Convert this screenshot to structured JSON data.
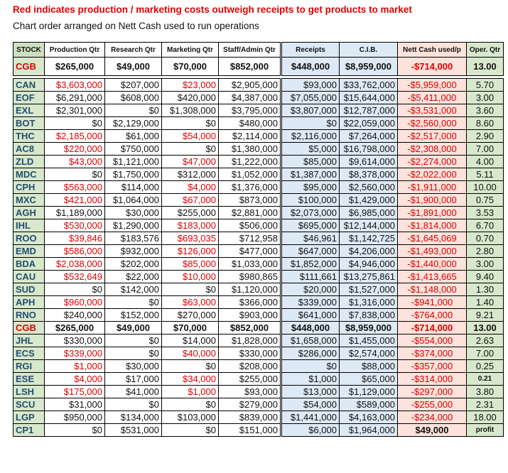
{
  "title": "Red indicates production / marketing costs outweigh receipts to get products to market",
  "subtitle": "Chart order arranged on Nett Cash used to run operations",
  "headers": [
    "STOCK",
    "Production Qtr",
    "Research Qtr",
    "Marketing Qtr",
    "Staff/Admin Qtr",
    "Receipts",
    "C.I.B.",
    "Nett Cash used/p",
    "Oper. Qtr"
  ],
  "colors": {
    "red": "#e00000",
    "stock_green": "#d8e8cc",
    "receipts_blue": "#dde9f5",
    "cash_pink": "#fde3dc"
  },
  "top_row": {
    "stock": "CGB",
    "production": "$265,000",
    "research": "$49,000",
    "marketing": "$70,000",
    "staff": "$852,000",
    "receipts": "$448,000",
    "cib": "$8,959,000",
    "nett": "-$714,000",
    "oper": "13.00"
  },
  "rows": [
    {
      "stock": "CAN",
      "production": "$3,603,000",
      "research": "$207,000",
      "marketing": "$23,000",
      "staff": "$2,905,000",
      "receipts": "$93,000",
      "cib": "$33,762,000",
      "nett": "-$5,959,000",
      "oper": "5.70",
      "red_prod": true,
      "red_mkt": true
    },
    {
      "stock": "EOF",
      "production": "$6,291,000",
      "research": "$608,000",
      "marketing": "$420,000",
      "staff": "$4,387,000",
      "receipts": "$7,055,000",
      "cib": "$15,644,000",
      "nett": "-$5,411,000",
      "oper": "3.00"
    },
    {
      "stock": "EXL",
      "production": "$2,301,000",
      "research": "$0",
      "marketing": "$1,308,000",
      "staff": "$3,795,000",
      "receipts": "$3,807,000",
      "cib": "$12,787,000",
      "nett": "-$3,531,000",
      "oper": "3.60"
    },
    {
      "stock": "BOT",
      "production": "$0",
      "research": "$2,129,000",
      "marketing": "$0",
      "staff": "$480,000",
      "receipts": "$0",
      "cib": "$22,059,000",
      "nett": "-$2,560,000",
      "oper": "8.60"
    },
    {
      "stock": "THC",
      "production": "$2,185,000",
      "research": "$61,000",
      "marketing": "$54,000",
      "staff": "$2,114,000",
      "receipts": "$2,116,000",
      "cib": "$7,264,000",
      "nett": "-$2,517,000",
      "oper": "2.90",
      "red_prod": true,
      "red_mkt": true
    },
    {
      "stock": "AC8",
      "production": "$220,000",
      "research": "$750,000",
      "marketing": "$0",
      "staff": "$1,380,000",
      "receipts": "$5,000",
      "cib": "$16,798,000",
      "nett": "-$2,308,000",
      "oper": "7.00",
      "red_prod": true
    },
    {
      "stock": "ZLD",
      "production": "$43,000",
      "research": "$1,121,000",
      "marketing": "$47,000",
      "staff": "$1,222,000",
      "receipts": "$85,000",
      "cib": "$9,614,000",
      "nett": "-$2,274,000",
      "oper": "4.00",
      "red_prod": true,
      "red_mkt": true
    },
    {
      "stock": "MDC",
      "production": "$0",
      "research": "$1,750,000",
      "marketing": "$312,000",
      "staff": "$1,052,000",
      "receipts": "$1,387,000",
      "cib": "$8,378,000",
      "nett": "-$2,022,000",
      "oper": "5.11"
    },
    {
      "stock": "CPH",
      "production": "$563,000",
      "research": "$114,000",
      "marketing": "$4,000",
      "staff": "$1,376,000",
      "receipts": "$95,000",
      "cib": "$2,560,000",
      "nett": "-$1,911,000",
      "oper": "10.00",
      "red_prod": true,
      "red_mkt": true
    },
    {
      "stock": "MXC",
      "production": "$421,000",
      "research": "$1,064,000",
      "marketing": "$67,000",
      "staff": "$873,000",
      "receipts": "$100,000",
      "cib": "$1,429,000",
      "nett": "-$1,900,000",
      "oper": "0.75",
      "red_prod": true,
      "red_mkt": true
    },
    {
      "stock": "AGH",
      "production": "$1,189,000",
      "research": "$30,000",
      "marketing": "$255,000",
      "staff": "$2,881,000",
      "receipts": "$2,073,000",
      "cib": "$6,985,000",
      "nett": "-$1,891,000",
      "oper": "3.53"
    },
    {
      "stock": "IHL",
      "production": "$530,000",
      "research": "$1,290,000",
      "marketing": "$183,000",
      "staff": "$506,000",
      "receipts": "$695,000",
      "cib": "$12,144,000",
      "nett": "-$1,814,000",
      "oper": "6.70",
      "red_prod": true,
      "red_mkt": true
    },
    {
      "stock": "ROO",
      "production": "$39,846",
      "research": "$183,576",
      "marketing": "$693,035",
      "staff": "$712,958",
      "receipts": "$46,961",
      "cib": "$1,142,725",
      "nett": "-$1,645,069",
      "oper": "0.70",
      "red_prod": true,
      "red_mkt": true
    },
    {
      "stock": "EMD",
      "production": "$586,000",
      "research": "$932,000",
      "marketing": "$126,000",
      "staff": "$477,000",
      "receipts": "$647,000",
      "cib": "$4,206,000",
      "nett": "-$1,493,000",
      "oper": "2.80",
      "red_prod": true,
      "red_mkt": true
    },
    {
      "stock": "BDA",
      "production": "$2,038,000",
      "research": "$202,000",
      "marketing": "$85,000",
      "staff": "$1,033,000",
      "receipts": "$1,852,000",
      "cib": "$4,946,000",
      "nett": "-$1,440,000",
      "oper": "3.00",
      "red_prod": true,
      "red_mkt": true
    },
    {
      "stock": "CAU",
      "production": "$532,649",
      "research": "$22,000",
      "marketing": "$10,000",
      "staff": "$980,865",
      "receipts": "$111,661",
      "cib": "$13,275,861",
      "nett": "-$1,413,665",
      "oper": "9.40",
      "red_prod": true,
      "red_mkt": true
    },
    {
      "stock": "SUD",
      "production": "$0",
      "research": "$142,000",
      "marketing": "$0",
      "staff": "$1,120,000",
      "receipts": "$20,000",
      "cib": "$1,527,000",
      "nett": "-$1,148,000",
      "oper": "1.30"
    },
    {
      "stock": "APH",
      "production": "$960,000",
      "research": "$0",
      "marketing": "$63,000",
      "staff": "$366,000",
      "receipts": "$339,000",
      "cib": "$1,316,000",
      "nett": "-$941,000",
      "oper": "1.40",
      "red_prod": true,
      "red_mkt": true
    },
    {
      "stock": "RNO",
      "production": "$240,000",
      "research": "$152,000",
      "marketing": "$270,000",
      "staff": "$903,000",
      "receipts": "$641,000",
      "cib": "$7,838,000",
      "nett": "-$764,000",
      "oper": "9.21"
    },
    {
      "stock": "CGB",
      "production": "$265,000",
      "research": "$49,000",
      "marketing": "$70,000",
      "staff": "$852,000",
      "receipts": "$448,000",
      "cib": "$8,959,000",
      "nett": "-$714,000",
      "oper": "13.00",
      "highlight": true
    },
    {
      "stock": "JHL",
      "production": "$330,000",
      "research": "$0",
      "marketing": "$14,000",
      "staff": "$1,828,000",
      "receipts": "$1,658,000",
      "cib": "$1,455,000",
      "nett": "-$554,000",
      "oper": "2.63"
    },
    {
      "stock": "ECS",
      "production": "$339,000",
      "research": "$0",
      "marketing": "$40,000",
      "staff": "$330,000",
      "receipts": "$286,000",
      "cib": "$2,574,000",
      "nett": "-$374,000",
      "oper": "7.00",
      "red_prod": true,
      "red_mkt": true
    },
    {
      "stock": "RGI",
      "production": "$1,000",
      "research": "$30,000",
      "marketing": "$0",
      "staff": "$208,000",
      "receipts": "$0",
      "cib": "$88,000",
      "nett": "-$357,000",
      "oper": "0.25",
      "red_prod": true
    },
    {
      "stock": "ESE",
      "production": "$4,000",
      "research": "$17,000",
      "marketing": "$34,000",
      "staff": "$255,000",
      "receipts": "$1,000",
      "cib": "$65,000",
      "nett": "-$314,000",
      "oper": "0.21",
      "red_prod": true,
      "red_mkt": true,
      "small_oper": true
    },
    {
      "stock": "LSH",
      "production": "$175,000",
      "research": "$41,000",
      "marketing": "$1,000",
      "staff": "$93,000",
      "receipts": "$13,000",
      "cib": "$1,129,000",
      "nett": "-$297,000",
      "oper": "3.80",
      "red_prod": true,
      "red_mkt": true
    },
    {
      "stock": "SCU",
      "production": "$31,000",
      "research": "$0",
      "marketing": "$0",
      "staff": "$279,000",
      "receipts": "$54,000",
      "cib": "$589,000",
      "nett": "-$255,000",
      "oper": "2.31"
    },
    {
      "stock": "LGP",
      "production": "$950,000",
      "research": "$134,000",
      "marketing": "$103,000",
      "staff": "$839,000",
      "receipts": "$1,441,000",
      "cib": "$4,163,000",
      "nett": "-$234,000",
      "oper": "18.00"
    },
    {
      "stock": "CP1",
      "production": "$0",
      "research": "$531,000",
      "marketing": "$0",
      "staff": "$151,000",
      "receipts": "$6,000",
      "cib": "$1,964,000",
      "nett": "$49,000",
      "oper": "profit",
      "positive": true
    }
  ]
}
